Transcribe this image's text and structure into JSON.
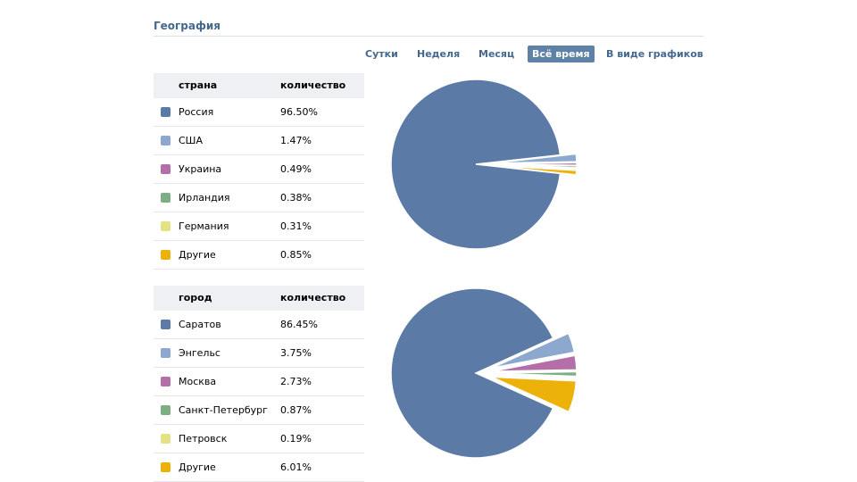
{
  "section_title": "География",
  "tabs": [
    {
      "label": "Сутки",
      "active": false
    },
    {
      "label": "Неделя",
      "active": false
    },
    {
      "label": "Месяц",
      "active": false
    },
    {
      "label": "Всё время",
      "active": true
    },
    {
      "label": "В виде графиков",
      "active": false
    }
  ],
  "colors": [
    "#5b7aa6",
    "#8ca8cf",
    "#b56fa8",
    "#7daf82",
    "#e3e385",
    "#edb20a"
  ],
  "country_table": {
    "col_name": "страна",
    "col_value": "количество",
    "rows": [
      {
        "name": "Россия",
        "value": "96.50%"
      },
      {
        "name": "США",
        "value": "1.47%"
      },
      {
        "name": "Украина",
        "value": "0.49%"
      },
      {
        "name": "Ирландия",
        "value": "0.38%"
      },
      {
        "name": "Германия",
        "value": "0.31%"
      },
      {
        "name": "Другие",
        "value": "0.85%"
      }
    ]
  },
  "city_table": {
    "col_name": "город",
    "col_value": "количество",
    "rows": [
      {
        "name": "Саратов",
        "value": "86.45%"
      },
      {
        "name": "Энгельс",
        "value": "3.75%"
      },
      {
        "name": "Москва",
        "value": "2.73%"
      },
      {
        "name": "Санкт-Петербург",
        "value": "0.87%"
      },
      {
        "name": "Петровск",
        "value": "0.19%"
      },
      {
        "name": "Другие",
        "value": "6.01%"
      }
    ]
  },
  "chart_data": [
    {
      "type": "pie",
      "categories": [
        "Россия",
        "США",
        "Украина",
        "Ирландия",
        "Германия",
        "Другие"
      ],
      "values": [
        96.5,
        1.47,
        0.49,
        0.38,
        0.31,
        0.85
      ]
    },
    {
      "type": "pie",
      "categories": [
        "Саратов",
        "Энгельс",
        "Москва",
        "Санкт-Петербург",
        "Петровск",
        "Другие"
      ],
      "values": [
        86.45,
        3.75,
        2.73,
        0.87,
        0.19,
        6.01
      ]
    }
  ]
}
